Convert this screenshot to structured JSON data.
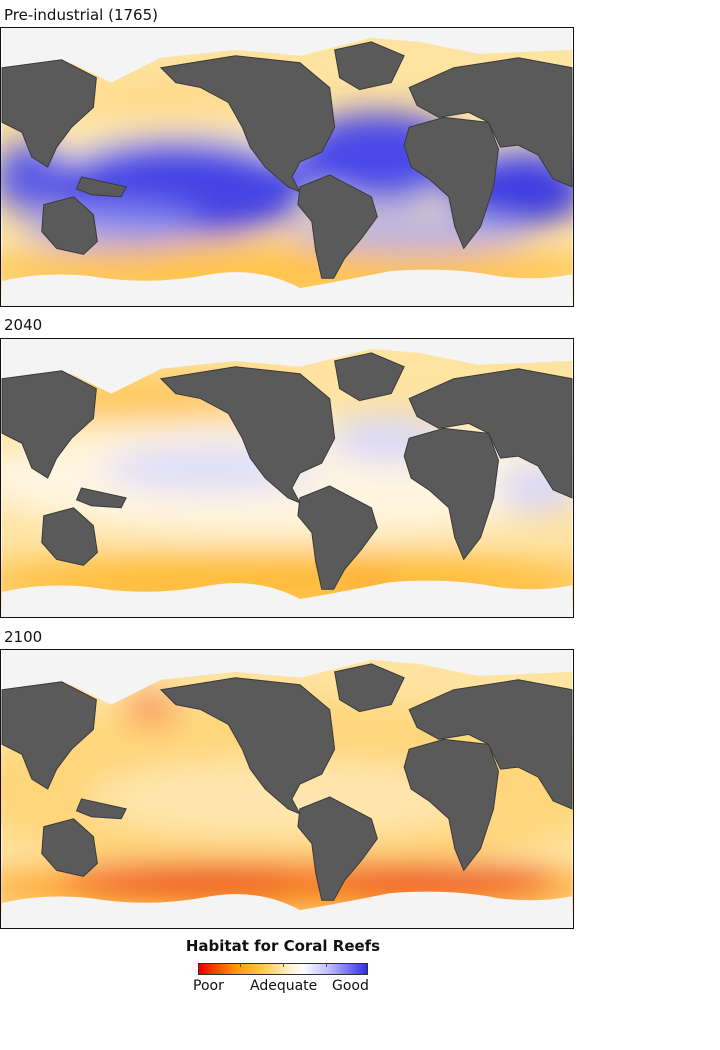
{
  "panels": [
    {
      "label": "Pre-industrial (1765)",
      "scenario": "preindustrial"
    },
    {
      "label": "2040",
      "scenario": "y2040"
    },
    {
      "label": "2100",
      "scenario": "y2100"
    }
  ],
  "legend": {
    "title": "Habitat for Coral Reefs",
    "labels": [
      "Poor",
      "Adequate",
      "Good"
    ]
  },
  "colors": {
    "poor": "#e80000",
    "adequate": "#ffe6a8",
    "good": "#2a2ae0",
    "land": "#5a5a5a",
    "ice": "#f4f4f4"
  }
}
